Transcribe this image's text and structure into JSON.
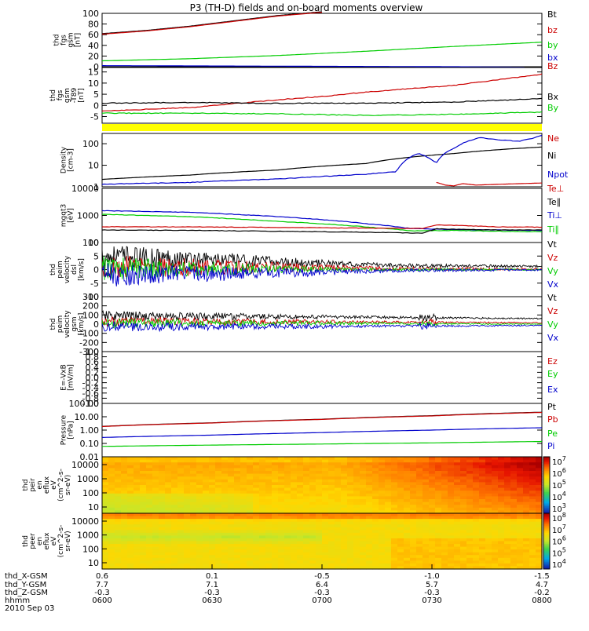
{
  "title": "P3 (TH-D) fields and on-board moments overview",
  "colors": {
    "black": "#000000",
    "red": "#cc0000",
    "green": "#00cc00",
    "blue": "#0000cc",
    "yellow": "#ffff00"
  },
  "chart_data": {
    "type": "line",
    "x_range": [
      "0600",
      "0800"
    ],
    "panels": [
      {
        "id": "fgs",
        "ylabel": [
          "thd",
          "fgs",
          "gsm",
          "[nT]"
        ],
        "ylim": [
          0,
          100
        ],
        "yticks": [
          "100",
          "80",
          "60",
          "40",
          "20",
          "0"
        ],
        "legend": [
          {
            "name": "Bt",
            "color": "black"
          },
          {
            "name": "bz",
            "color": "red"
          },
          {
            "name": "by",
            "color": "green"
          },
          {
            "name": "bx",
            "color": "blue"
          }
        ],
        "series": [
          {
            "name": "Bt",
            "color": "black",
            "x": [
              0,
              0.1,
              0.2,
              0.3,
              0.4,
              0.5
            ],
            "y": [
              62,
              68,
              76,
              86,
              96,
              103
            ]
          },
          {
            "name": "bz",
            "color": "red",
            "x": [
              0,
              0.1,
              0.2,
              0.3,
              0.4,
              0.5
            ],
            "y": [
              61,
              67,
              75,
              85,
              95,
              102
            ]
          },
          {
            "name": "by",
            "color": "green",
            "x": [
              0,
              0.2,
              0.4,
              0.6,
              0.8,
              1.0
            ],
            "y": [
              11,
              15,
              21,
              29,
              38,
              46
            ]
          },
          {
            "name": "bx",
            "color": "blue",
            "x": [
              0,
              0.2,
              0.4,
              0.6,
              0.8,
              0.96
            ],
            "y": [
              2,
              1.5,
              1,
              0.5,
              0,
              -1
            ]
          }
        ]
      },
      {
        "id": "t89",
        "ylabel": [
          "thd",
          "fgs",
          "gsm",
          "-T89",
          "[nT]"
        ],
        "ylim": [
          -8,
          17
        ],
        "yticks": [
          "15",
          "10",
          "5",
          "0",
          "-5"
        ],
        "legend": [
          {
            "name": "Bz",
            "color": "red"
          },
          {
            "name": "Bx",
            "color": "black"
          },
          {
            "name": "By",
            "color": "green"
          }
        ],
        "series": [
          {
            "name": "Bz",
            "color": "red",
            "x": [
              0,
              0.2,
              0.4,
              0.5,
              0.6,
              0.8,
              1.0
            ],
            "y": [
              -2.5,
              -1,
              2.5,
              4,
              6,
              9,
              14
            ]
          },
          {
            "name": "Bx",
            "color": "black",
            "x": [
              0,
              0.2,
              0.4,
              0.6,
              0.8,
              1.0
            ],
            "y": [
              1,
              1.3,
              0.9,
              1,
              1.5,
              3
            ]
          },
          {
            "name": "By",
            "color": "green",
            "x": [
              0,
              0.2,
              0.4,
              0.6,
              0.8,
              1.0
            ],
            "y": [
              -3.5,
              -3.5,
              -3.8,
              -4.5,
              -4,
              -3
            ]
          }
        ]
      },
      {
        "id": "density",
        "ylabel": [
          "Density",
          "[cm-3]"
        ],
        "ylim": [
          1,
          300
        ],
        "yscale": "log",
        "yticks": [
          "100",
          "10",
          "1"
        ],
        "legend": [
          {
            "name": "Ne",
            "color": "red"
          },
          {
            "name": "Ni",
            "color": "black"
          },
          {
            "name": "Npot",
            "color": "blue"
          }
        ],
        "series": [
          {
            "name": "Ni",
            "color": "black",
            "x": [
              0,
              0.2,
              0.4,
              0.6,
              0.8,
              1.0
            ],
            "y": [
              2.2,
              3.5,
              6,
              12,
              35,
              70
            ]
          },
          {
            "name": "Npot",
            "color": "blue",
            "x": [
              0,
              0.2,
              0.4,
              0.5,
              0.6,
              0.67,
              0.72,
              0.76,
              0.8,
              0.86,
              0.9,
              0.95,
              0.98,
              1.0
            ],
            "y": [
              1.3,
              1.6,
              2.3,
              3,
              3.8,
              5,
              35,
              12,
              60,
              190,
              150,
              130,
              180,
              250
            ]
          },
          {
            "name": "Ne",
            "color": "red",
            "x": [
              0.76,
              0.78,
              0.8,
              0.82,
              0.85,
              0.9,
              1.0
            ],
            "y": [
              1.6,
              1.2,
              1.1,
              1.4,
              1.2,
              1.3,
              1.5
            ]
          }
        ]
      },
      {
        "id": "temperature",
        "ylabel": [
          "mgqt3",
          "[eV]"
        ],
        "ylim": [
          100,
          10000
        ],
        "yscale": "log",
        "yticks": [
          "10000",
          "1000",
          "100"
        ],
        "legend": [
          {
            "name": "Te⊥",
            "color": "red"
          },
          {
            "name": "Te∥",
            "color": "black"
          },
          {
            "name": "Ti⊥",
            "color": "blue"
          },
          {
            "name": "Ti∥",
            "color": "green"
          }
        ],
        "series": [
          {
            "name": "Ti⊥",
            "color": "blue",
            "x": [
              0,
              0.2,
              0.4,
              0.6,
              0.7,
              0.8,
              0.9,
              1.0
            ],
            "y": [
              1500,
              1300,
              900,
              500,
              330,
              300,
              290,
              280
            ]
          },
          {
            "name": "Ti∥",
            "color": "green",
            "x": [
              0,
              0.2,
              0.4,
              0.6,
              0.7,
              0.8,
              0.9,
              1.0
            ],
            "y": [
              1100,
              900,
              600,
              380,
              270,
              280,
              260,
              250
            ]
          },
          {
            "name": "Te⊥",
            "color": "red",
            "x": [
              0,
              0.2,
              0.4,
              0.6,
              0.73,
              0.76,
              0.8,
              0.9,
              1.0
            ],
            "y": [
              380,
              380,
              360,
              340,
              330,
              450,
              430,
              380,
              370
            ]
          },
          {
            "name": "Te∥",
            "color": "black",
            "x": [
              0,
              0.2,
              0.4,
              0.6,
              0.73,
              0.76,
              0.8,
              0.9,
              1.0
            ],
            "y": [
              290,
              280,
              260,
              240,
              220,
              320,
              310,
              290,
              290
            ]
          }
        ]
      },
      {
        "id": "peim_dsl",
        "ylabel": [
          "thd",
          "peim",
          "velocity",
          "dsl",
          "[km/s]"
        ],
        "ylim": [
          -10,
          10
        ],
        "yticks": [
          "10",
          "5",
          "0",
          "-5",
          "-10"
        ],
        "legend": [
          {
            "name": "Vt",
            "color": "black"
          },
          {
            "name": "Vz",
            "color": "red"
          },
          {
            "name": "Vy",
            "color": "green"
          },
          {
            "name": "Vx",
            "color": "blue"
          }
        ],
        "series": [
          {
            "name": "Vt",
            "color": "black",
            "x": [
              0,
              0.3,
              0.55,
              0.7,
              1.0
            ],
            "y": [
              5,
              3.5,
              2,
              1.5,
              1.2
            ]
          },
          {
            "name": "Vz",
            "color": "red",
            "x": [
              0,
              0.3,
              0.55,
              0.7,
              1.0
            ],
            "y": [
              1,
              0.8,
              0.5,
              0.3,
              0.2
            ]
          },
          {
            "name": "Vy",
            "color": "green",
            "x": [
              0,
              0.3,
              0.55,
              0.7,
              1.0
            ],
            "y": [
              0.5,
              0.3,
              0,
              0,
              0
            ]
          },
          {
            "name": "Vx",
            "color": "blue",
            "x": [
              0,
              0.3,
              0.55,
              0.7,
              1.0
            ],
            "y": [
              -2,
              -1.5,
              -0.8,
              -0.3,
              -0.1
            ]
          }
        ]
      },
      {
        "id": "peim_gsm",
        "ylabel": [
          "thd",
          "peim",
          "velocity",
          "gsm",
          "[km/s]"
        ],
        "ylim": [
          -300,
          300
        ],
        "yticks": [
          "300",
          "200",
          "100",
          "0",
          "-100",
          "-200",
          "-300"
        ],
        "legend": [
          {
            "name": "Vt",
            "color": "black"
          },
          {
            "name": "Vz",
            "color": "red"
          },
          {
            "name": "Vy",
            "color": "green"
          },
          {
            "name": "Vx",
            "color": "blue"
          }
        ],
        "series": [
          {
            "name": "Vt",
            "color": "black",
            "x": [
              0,
              0.5,
              0.75,
              1.0
            ],
            "y": [
              90,
              80,
              70,
              60
            ]
          },
          {
            "name": "Vz",
            "color": "red",
            "x": [
              0,
              0.5,
              0.75,
              1.0
            ],
            "y": [
              30,
              25,
              20,
              15
            ]
          },
          {
            "name": "Vy",
            "color": "green",
            "x": [
              0,
              0.5,
              0.75,
              1.0
            ],
            "y": [
              10,
              10,
              5,
              0
            ]
          },
          {
            "name": "Vx",
            "color": "blue",
            "x": [
              0,
              0.5,
              0.75,
              1.0
            ],
            "y": [
              -30,
              -25,
              -20,
              -15
            ]
          }
        ]
      },
      {
        "id": "efield",
        "ylabel": [
          "E=-VxB",
          "[mV/m]"
        ],
        "ylim": [
          -1,
          1
        ],
        "yticks": [
          "1.0",
          "0.8",
          "0.6",
          "0.4",
          "0.2",
          "0.0",
          "-0.2",
          "-0.4",
          "-0.6",
          "-0.8",
          "-1.0"
        ],
        "legend": [
          {
            "name": "Ez",
            "color": "red"
          },
          {
            "name": "Ey",
            "color": "green"
          },
          {
            "name": "Ex",
            "color": "blue"
          }
        ],
        "series": []
      },
      {
        "id": "pressure",
        "ylabel": [
          "Pressure",
          "[nPa]"
        ],
        "ylim": [
          0.01,
          100
        ],
        "yscale": "log",
        "yticks": [
          "100.00",
          "10.00",
          "1.00",
          "0.10",
          "0.01"
        ],
        "legend": [
          {
            "name": "Pt",
            "color": "black"
          },
          {
            "name": "Pb",
            "color": "red"
          },
          {
            "name": "Pe",
            "color": "green"
          },
          {
            "name": "Pi",
            "color": "blue"
          }
        ],
        "series": [
          {
            "name": "Pt",
            "color": "black",
            "x": [
              0,
              0.25,
              0.5,
              0.75,
              1.0
            ],
            "y": [
              1.9,
              3.5,
              6.5,
              12,
              22
            ]
          },
          {
            "name": "Pb",
            "color": "red",
            "x": [
              0,
              0.25,
              0.5,
              0.75,
              1.0
            ],
            "y": [
              1.85,
              3.4,
              6.3,
              11.5,
              21
            ]
          },
          {
            "name": "Pi",
            "color": "blue",
            "x": [
              0,
              0.25,
              0.5,
              0.75,
              1.0
            ],
            "y": [
              0.28,
              0.42,
              0.65,
              1.0,
              1.5
            ]
          },
          {
            "name": "Pe",
            "color": "green",
            "x": [
              0,
              0.25,
              0.5,
              0.75,
              1.0
            ],
            "y": [
              0.06,
              0.075,
              0.09,
              0.11,
              0.14
            ]
          }
        ]
      }
    ],
    "spectrograms": [
      {
        "id": "peir",
        "type": "heatmap",
        "ylabel": [
          "thd",
          "peir",
          "en",
          "eflux",
          "eV",
          "(cm^2-s-",
          "sr-eV)"
        ],
        "yticks": [
          "10000",
          "1000",
          "100",
          "10"
        ],
        "colorbar_ticks": [
          {
            "base": "10",
            "exp": "7"
          },
          {
            "base": "10",
            "exp": "6"
          },
          {
            "base": "10",
            "exp": "5"
          },
          {
            "base": "10",
            "exp": "4"
          },
          {
            "base": "10",
            "exp": "3"
          }
        ]
      },
      {
        "id": "peer",
        "type": "heatmap",
        "ylabel": [
          "thd",
          "peer",
          "en",
          "eflux",
          "eV",
          "(cm^2-s-",
          "sr-eV)"
        ],
        "yticks": [
          "10000",
          "1000",
          "100",
          "10"
        ],
        "colorbar_ticks": [
          {
            "base": "10",
            "exp": "8"
          },
          {
            "base": "10",
            "exp": "7"
          },
          {
            "base": "10",
            "exp": "6"
          },
          {
            "base": "10",
            "exp": "5"
          },
          {
            "base": "10",
            "exp": "4"
          }
        ]
      }
    ],
    "ephemeris": {
      "labels": [
        "thd_X-GSM",
        "thd_Y-GSM",
        "thd_Z-GSM",
        "hhmm"
      ],
      "columns": [
        {
          "values": [
            "0.6",
            "7.7",
            "-0.3",
            "0600"
          ]
        },
        {
          "values": [
            "0.1",
            "7.1",
            "-0.3",
            "0630"
          ]
        },
        {
          "values": [
            "-0.5",
            "6.4",
            "-0.3",
            "0700"
          ]
        },
        {
          "values": [
            "-1.0",
            "5.7",
            "-0.3",
            "0730"
          ]
        },
        {
          "values": [
            "-1.5",
            "4.7",
            "-0.2",
            "0800"
          ]
        }
      ],
      "date": "2010 Sep 03"
    }
  }
}
